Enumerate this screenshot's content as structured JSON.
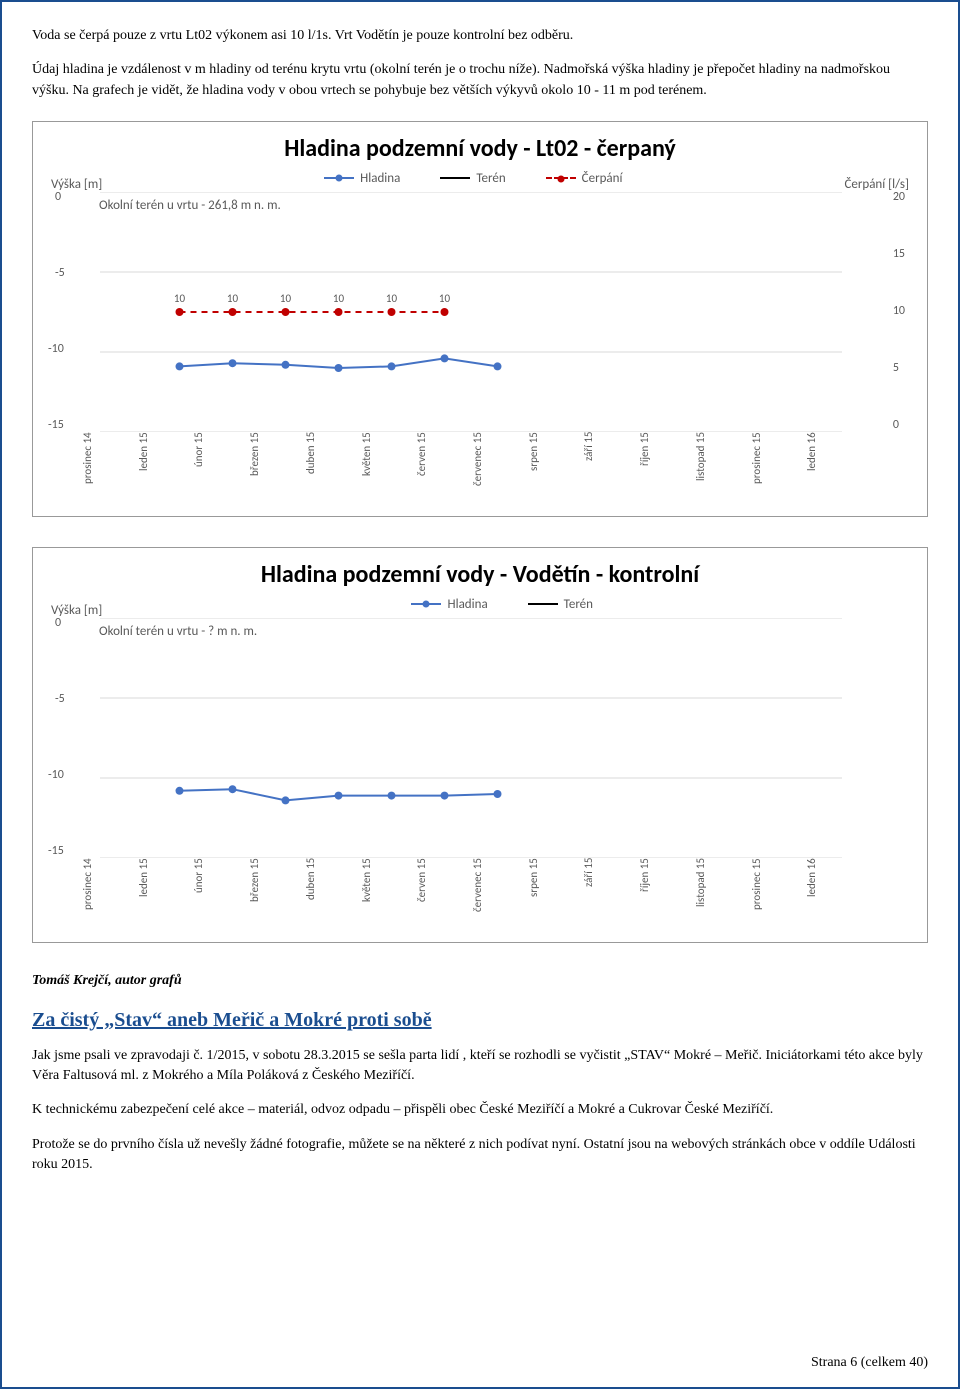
{
  "intro_para1": "Voda se čerpá pouze z vrtu Lt02 výkonem asi 10 l/1s. Vrt Vodětín je pouze kontrolní bez odběru.",
  "intro_para2": "Údaj hladina je vzdálenost v m hladiny od terénu krytu vrtu (okolní terén je o trochu níže). Nadmořská výška hladiny je přepočet hladiny na nadmořskou výšku. Na grafech je vidět, že hladina vody v obou vrtech se pohybuje bez větších výkyvů okolo 10 - 11 m pod terénem.",
  "chart1": {
    "title": "Hladina podzemní vody - Lt02 - čerpaný",
    "y_left_label": "Výška [m]",
    "y_right_label": "Čerpání [l/s]",
    "note": "Okolní terén u vrtu - 261,8 m n. m.",
    "legend": {
      "hladina": "Hladina",
      "teren": "Terén",
      "cerpani": "Čerpání"
    },
    "colors": {
      "hladina": "#4472c4",
      "teren": "#000000",
      "cerpani": "#c00000",
      "grid": "#d9d9d9",
      "axis_text": "#595959",
      "bg": "#ffffff"
    },
    "y_left": {
      "min": -15,
      "max": 0,
      "ticks": [
        0,
        -5,
        -10,
        -15
      ]
    },
    "y_right": {
      "min": 0,
      "max": 20,
      "ticks": [
        20,
        15,
        10,
        5,
        0
      ]
    },
    "x_labels": [
      "prosinec 14",
      "leden 15",
      "únor 15",
      "březen 15",
      "duben 15",
      "květen 15",
      "červen 15",
      "červenec 15",
      "srpen 15",
      "září 15",
      "říjen 15",
      "listopad 15",
      "prosinec 15",
      "leden 16"
    ],
    "hladina_values": [
      -10.9,
      -10.7,
      -10.8,
      -11.0,
      -10.9,
      -10.4,
      -10.9
    ],
    "cerpani_values": [
      10,
      10,
      10,
      10,
      10,
      10
    ],
    "cerpani_labels": [
      "10",
      "10",
      "10",
      "10",
      "10",
      "10"
    ],
    "marker_size": 4,
    "line_width": 2
  },
  "chart2": {
    "title": "Hladina podzemní vody - Vodětín - kontrolní",
    "y_left_label": "Výška [m]",
    "note": "Okolní terén u vrtu - ? m n. m.",
    "legend": {
      "hladina": "Hladina",
      "teren": "Terén"
    },
    "colors": {
      "hladina": "#4472c4",
      "teren": "#000000",
      "grid": "#d9d9d9",
      "axis_text": "#595959",
      "bg": "#ffffff"
    },
    "y_left": {
      "min": -15,
      "max": 0,
      "ticks": [
        0,
        -5,
        -10,
        -15
      ]
    },
    "x_labels": [
      "prosinec 14",
      "leden 15",
      "únor 15",
      "březen 15",
      "duben 15",
      "květen 15",
      "červen 15",
      "červenec 15",
      "srpen 15",
      "září 15",
      "říjen 15",
      "listopad 15",
      "prosinec 15",
      "leden 16"
    ],
    "hladina_values": [
      -10.8,
      -10.7,
      -11.4,
      -11.1,
      -11.1,
      -11.1,
      -11.0
    ],
    "marker_size": 4,
    "line_width": 2
  },
  "author": "Tomáš Krejčí, autor grafů",
  "article": {
    "title": "Za čistý „Stav“ aneb Meřič a Mokré proti sobě",
    "p1": "Jak jsme psali ve zpravodaji č. 1/2015, v sobotu 28.3.2015 se sešla parta lidí , kteří se rozhodli se vyčistit „STAV“ Mokré – Meřič. Iniciátorkami této akce byly Věra Faltusová ml. z Mokrého a Míla Poláková z Českého Meziříčí.",
    "p2": "K technickému zabezpečení celé akce – materiál, odvoz odpadu – přispěli obec České Meziříčí a Mokré a Cukrovar České Meziříčí.",
    "p3": "Protože se do prvního čísla už nevešly žádné fotografie, můžete se na některé z nich podívat nyní. Ostatní jsou na webových stránkách obce v oddíle Události roku 2015."
  },
  "footer": "Strana 6 (celkem 40)"
}
